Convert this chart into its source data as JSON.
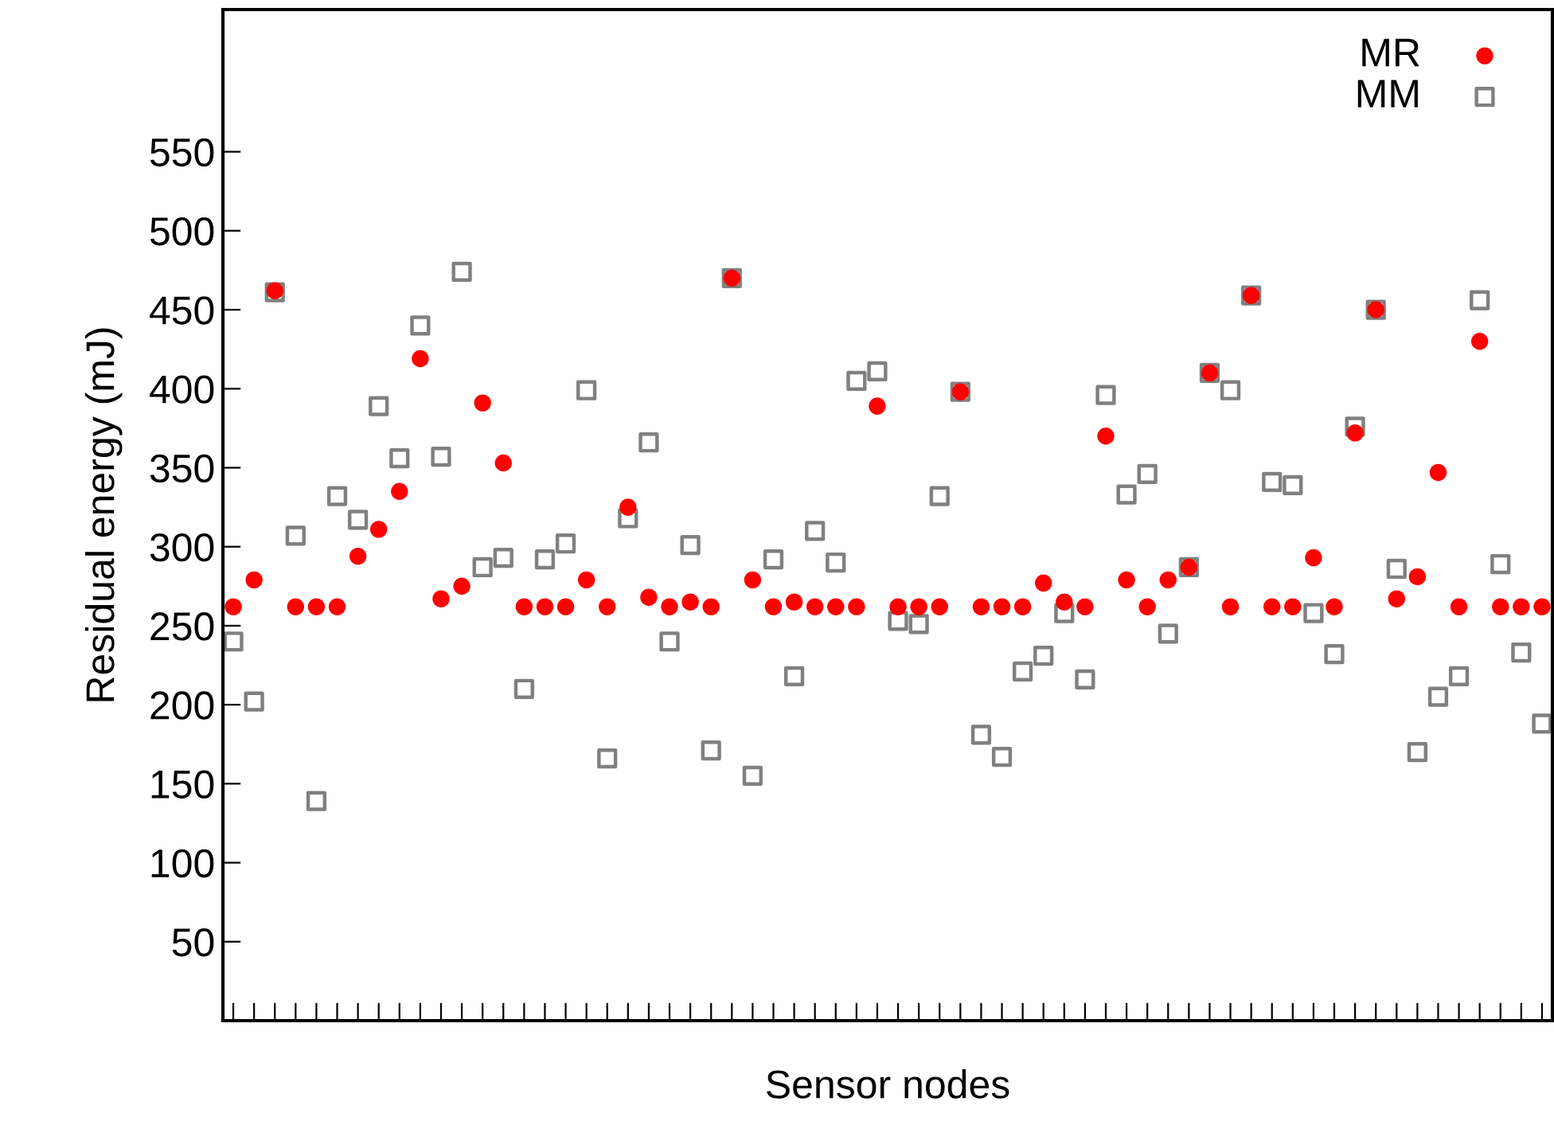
{
  "chart_data": {
    "type": "scatter",
    "xlabel": "Sensor nodes",
    "ylabel": "Residual energy (mJ)",
    "categories": [
      null,
      null,
      null,
      null,
      null,
      null,
      null,
      null,
      null,
      null,
      null,
      null,
      null,
      null,
      null,
      null,
      null,
      null,
      null,
      null,
      null,
      null,
      null,
      null,
      null,
      null,
      null,
      null,
      null,
      null,
      null,
      null,
      null,
      null,
      null,
      null,
      null,
      null,
      null,
      null,
      null,
      null,
      null,
      null,
      null,
      null,
      null,
      null,
      null,
      null,
      null,
      null,
      null,
      null,
      null,
      null,
      null,
      null,
      null,
      null,
      null,
      null,
      null,
      null
    ],
    "ylim": [
      0,
      640
    ],
    "yticks": [
      50,
      100,
      150,
      200,
      250,
      300,
      350,
      400,
      450,
      500,
      550
    ],
    "grid": false,
    "legend": "top right",
    "tick_labels": "y",
    "series": [
      {
        "name": "MR",
        "color": "#ff0000",
        "marker": "circle",
        "values": [
          262,
          279,
          462,
          262,
          262,
          262,
          294,
          311,
          335,
          419,
          267,
          275,
          391,
          353,
          262,
          262,
          262,
          279,
          262,
          325,
          268,
          262,
          265,
          262,
          470,
          279,
          262,
          265,
          262,
          262,
          262,
          389,
          262,
          262,
          262,
          398,
          262,
          262,
          262,
          277,
          265,
          262,
          370,
          279,
          262,
          279,
          287,
          410,
          262,
          459,
          262,
          262,
          293,
          262,
          372,
          450,
          267,
          281,
          347,
          262,
          430,
          262,
          262,
          262
        ]
      },
      {
        "name": "MM",
        "color": "#808080",
        "marker": "square",
        "values": [
          240,
          202,
          461,
          307,
          139,
          332,
          317,
          389,
          356,
          440,
          357,
          474,
          287,
          293,
          210,
          292,
          302,
          399,
          166,
          318,
          366,
          240,
          301,
          171,
          470,
          155,
          292,
          218,
          310,
          290,
          405,
          411,
          253,
          251,
          332,
          398,
          181,
          167,
          221,
          231,
          258,
          216,
          396,
          333,
          346,
          245,
          287,
          410,
          399,
          459,
          341,
          339,
          258,
          232,
          376,
          450,
          286,
          170,
          205,
          218,
          456,
          289,
          233,
          188
        ]
      }
    ]
  }
}
